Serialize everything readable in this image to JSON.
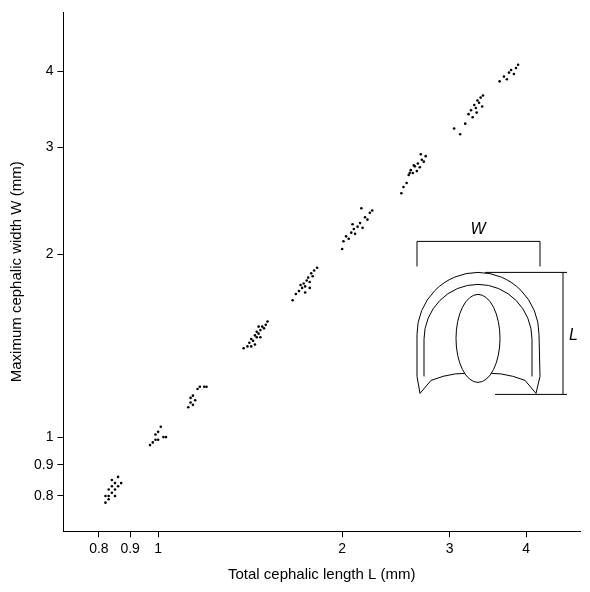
{
  "chart_data": {
    "type": "scatter",
    "x_label": "Total cephalic length L (mm)",
    "y_label": "Maximum cephalic width W (mm)",
    "annotations": [
      "W",
      "L"
    ],
    "log": true,
    "grid": false,
    "color": "#000000",
    "marker": "circle",
    "xlim": [
      0.7,
      4.9
    ],
    "ylim": [
      0.72,
      5.0
    ],
    "xticks": [
      0.8,
      0.9,
      1,
      2,
      3,
      4
    ],
    "yticks": [
      0.8,
      0.9,
      1,
      2,
      3,
      4
    ],
    "x": [
      0.82,
      0.82,
      0.83,
      0.83,
      0.84,
      0.84,
      0.85,
      0.85,
      0.86,
      0.86,
      0.87,
      0.84,
      0.83,
      0.85,
      0.97,
      0.98,
      0.99,
      1.0,
      1.0,
      1.01,
      1.02,
      1.03,
      0.99,
      1.12,
      1.13,
      1.13,
      1.14,
      1.15,
      1.16,
      1.17,
      1.19,
      1.2,
      1.14,
      1.38,
      1.4,
      1.41,
      1.42,
      1.43,
      1.44,
      1.45,
      1.45,
      1.46,
      1.47,
      1.48,
      1.49,
      1.5,
      1.51,
      1.47,
      1.44,
      1.46,
      1.42,
      1.66,
      1.68,
      1.7,
      1.72,
      1.73,
      1.74,
      1.75,
      1.76,
      1.77,
      1.78,
      1.79,
      1.8,
      1.82,
      1.74,
      1.71,
      1.77,
      2.0,
      2.01,
      2.03,
      2.05,
      2.07,
      2.09,
      2.1,
      2.12,
      2.14,
      2.16,
      2.18,
      2.2,
      2.22,
      2.24,
      2.08,
      2.15,
      2.5,
      2.52,
      2.55,
      2.57,
      2.59,
      2.61,
      2.63,
      2.65,
      2.66,
      2.68,
      2.7,
      2.72,
      2.74,
      2.62,
      2.69,
      2.58,
      3.05,
      3.12,
      3.18,
      3.22,
      3.25,
      3.27,
      3.29,
      3.31,
      3.33,
      3.35,
      3.37,
      3.39,
      3.4,
      3.32,
      3.62,
      3.68,
      3.72,
      3.75,
      3.78,
      3.82,
      3.85,
      3.88
    ],
    "values": [
      0.8,
      0.78,
      0.82,
      0.79,
      0.81,
      0.83,
      0.82,
      0.84,
      0.86,
      0.83,
      0.84,
      0.85,
      0.8,
      0.8,
      0.97,
      0.98,
      0.99,
      1.02,
      0.99,
      1.04,
      1.0,
      1.0,
      1.01,
      1.12,
      1.14,
      1.16,
      1.17,
      1.15,
      1.2,
      1.21,
      1.21,
      1.21,
      1.13,
      1.4,
      1.41,
      1.43,
      1.45,
      1.44,
      1.47,
      1.46,
      1.49,
      1.48,
      1.5,
      1.52,
      1.51,
      1.53,
      1.55,
      1.46,
      1.42,
      1.52,
      1.41,
      1.68,
      1.72,
      1.74,
      1.76,
      1.79,
      1.77,
      1.81,
      1.83,
      1.8,
      1.86,
      1.84,
      1.88,
      1.9,
      1.73,
      1.78,
      1.76,
      2.04,
      2.1,
      2.14,
      2.12,
      2.17,
      2.2,
      2.16,
      2.22,
      2.25,
      2.21,
      2.3,
      2.28,
      2.34,
      2.36,
      2.24,
      2.38,
      2.52,
      2.58,
      2.62,
      2.7,
      2.75,
      2.72,
      2.79,
      2.74,
      2.82,
      2.78,
      2.86,
      2.84,
      2.9,
      2.8,
      2.92,
      2.72,
      3.22,
      3.15,
      3.28,
      3.4,
      3.45,
      3.36,
      3.52,
      3.48,
      3.58,
      3.55,
      3.62,
      3.5,
      3.65,
      3.42,
      3.85,
      3.92,
      3.88,
      3.98,
      4.02,
      3.96,
      4.05,
      4.1
    ]
  }
}
